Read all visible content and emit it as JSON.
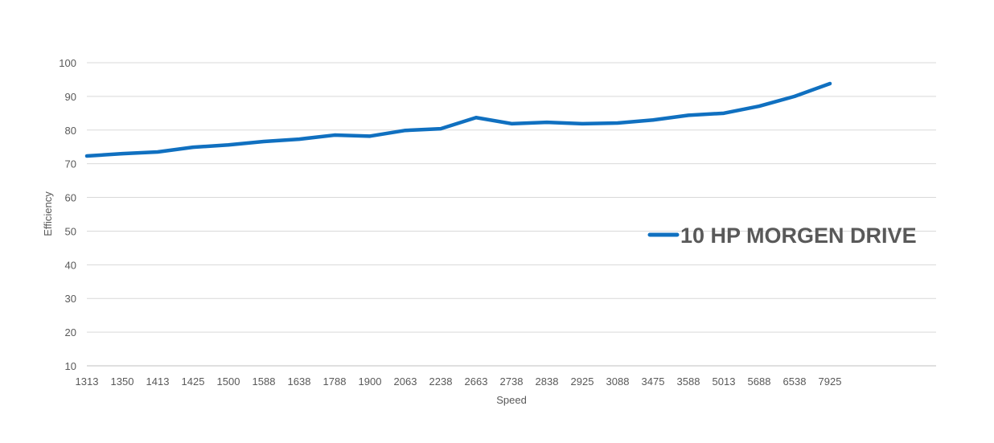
{
  "chart_data": {
    "type": "line",
    "title": "",
    "xlabel": "Speed",
    "ylabel": "Efficiency",
    "categories": [
      "1313",
      "1350",
      "1413",
      "1425",
      "1500",
      "1588",
      "1638",
      "1788",
      "1900",
      "2063",
      "2238",
      "2663",
      "2738",
      "2838",
      "2925",
      "3088",
      "3475",
      "3588",
      "5013",
      "5688",
      "6538",
      "7925"
    ],
    "ylim": [
      10,
      100
    ],
    "yticks": [
      10,
      20,
      30,
      40,
      50,
      60,
      70,
      80,
      90,
      100
    ],
    "grid": true,
    "legend_position": "right",
    "series": [
      {
        "name": "10 HP MORGEN DRIVE",
        "color": "#1070c0",
        "values": [
          72.3,
          73.0,
          73.5,
          74.9,
          75.6,
          76.6,
          77.3,
          78.5,
          78.2,
          79.9,
          80.4,
          83.7,
          81.9,
          82.3,
          81.9,
          82.1,
          83.0,
          84.4,
          85.0,
          87.1,
          90.0,
          93.8
        ]
      }
    ]
  }
}
